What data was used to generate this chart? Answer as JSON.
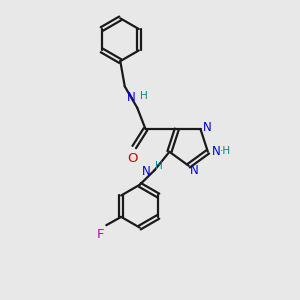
{
  "background_color": "#e8e8e8",
  "bond_color": "#1a1a1a",
  "nitrogen_color": "#0000dd",
  "oxygen_color": "#cc0000",
  "fluorine_color": "#cc00cc",
  "nh_color": "#008888",
  "figsize": [
    3.0,
    3.0
  ],
  "dpi": 100,
  "xlim": [
    0,
    10
  ],
  "ylim": [
    0,
    10
  ]
}
